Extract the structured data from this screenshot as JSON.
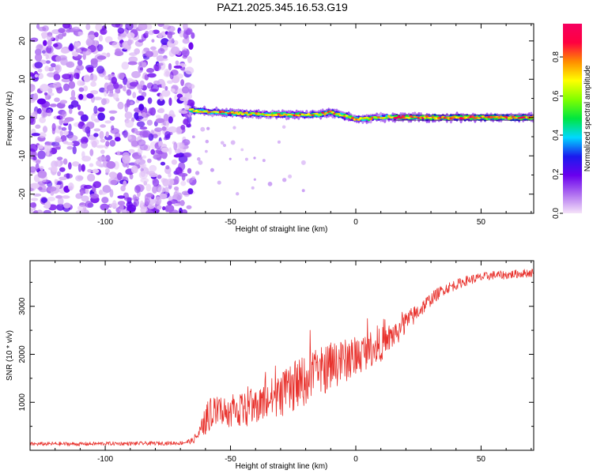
{
  "page_title": "PAZ1.2025.345.16.53.G19",
  "colors": {
    "axis": "#000000",
    "snr_line": "#e8322d",
    "colorbar_stops": [
      "#f5e3f9",
      "#b070f0",
      "#6a00ee",
      "#1a1aee",
      "#00d8ff",
      "#00e640",
      "#80ff00",
      "#ffff00",
      "#ff8c00",
      "#ff0040",
      "#f50060"
    ]
  },
  "chart_data": [
    {
      "type": "heatmap",
      "title": "PAZ1.2025.345.16.53.G19",
      "xlabel": "Height of straight line (km)",
      "ylabel": "Frequency (Hz)",
      "xlim": [
        -130,
        71
      ],
      "ylim": [
        -25,
        24.5
      ],
      "xticks": [
        -100,
        -50,
        0,
        50
      ],
      "xtick_labels": [
        "-100",
        "-50",
        "0",
        "50"
      ],
      "yticks": [
        -20,
        -10,
        0,
        10,
        20
      ],
      "ytick_labels": [
        "-20",
        "-10",
        "0",
        "10",
        "20"
      ],
      "noise_region_x": [
        -130,
        -65
      ],
      "ridge": {
        "x": [
          -66,
          -60,
          -55,
          -50,
          -45,
          -40,
          -35,
          -30,
          -25,
          -20,
          -15,
          -10,
          -5,
          0,
          5,
          10,
          15,
          20,
          30,
          40,
          50,
          60,
          71
        ],
        "freq": [
          2.0,
          1.5,
          1.4,
          1.2,
          1.0,
          0.9,
          0.8,
          0.8,
          0.7,
          0.7,
          0.8,
          1.4,
          0.5,
          -0.5,
          -0.2,
          0.0,
          0.1,
          0.1,
          0.0,
          0.0,
          0.0,
          0.0,
          0.0
        ]
      },
      "colorbar": {
        "label": "Normalized spectral amplitude",
        "range": [
          0,
          0.97
        ],
        "ticks": [
          0.0,
          0.2,
          0.4,
          0.6,
          0.8
        ],
        "tick_labels": [
          "0.0",
          "0.2",
          "0.4",
          "0.6",
          "0.8"
        ]
      }
    },
    {
      "type": "line",
      "xlabel": "Height of straight line (km)",
      "ylabel": "SNR (10 * v/v)",
      "xlim": [
        -130,
        71
      ],
      "ylim": [
        0,
        3950
      ],
      "xticks": [
        -100,
        -50,
        0,
        50
      ],
      "xtick_labels": [
        "-100",
        "-50",
        "0",
        "50"
      ],
      "yticks": [
        1000,
        2000,
        3000
      ],
      "ytick_labels": [
        "1000",
        "2000",
        "3000"
      ],
      "series": [
        {
          "name": "SNR",
          "x": [
            -130,
            -120,
            -110,
            -100,
            -90,
            -80,
            -70,
            -65,
            -62,
            -60,
            -58,
            -55,
            -50,
            -45,
            -40,
            -35,
            -30,
            -25,
            -20,
            -15,
            -10,
            -5,
            0,
            5,
            10,
            15,
            20,
            25,
            30,
            35,
            40,
            45,
            50,
            55,
            60,
            65,
            71
          ],
          "mean": [
            130,
            135,
            130,
            140,
            140,
            145,
            150,
            200,
            380,
            620,
            750,
            800,
            820,
            850,
            900,
            1050,
            1150,
            1300,
            1450,
            1600,
            1750,
            1850,
            1950,
            2100,
            2200,
            2400,
            2650,
            2900,
            3150,
            3350,
            3450,
            3550,
            3600,
            3650,
            3650,
            3680,
            3700
          ],
          "noise_amp": [
            40,
            40,
            40,
            40,
            40,
            40,
            40,
            60,
            180,
            300,
            320,
            330,
            340,
            350,
            380,
            430,
            470,
            500,
            520,
            520,
            500,
            460,
            420,
            380,
            350,
            300,
            240,
            180,
            140,
            120,
            110,
            100,
            100,
            90,
            90,
            90,
            90
          ]
        }
      ]
    }
  ]
}
